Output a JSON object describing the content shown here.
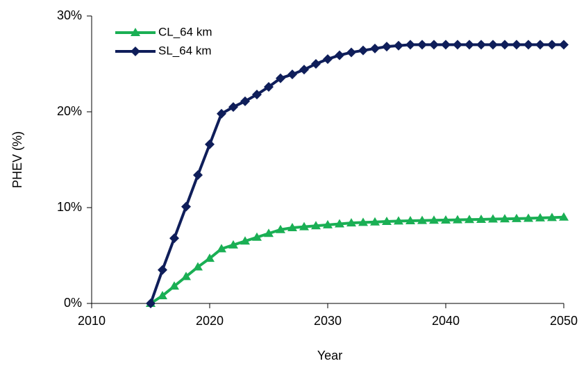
{
  "chart_data": {
    "type": "line",
    "xlabel": "Year",
    "ylabel": "PHEV (%)",
    "x": [
      2015,
      2016,
      2017,
      2018,
      2019,
      2020,
      2021,
      2022,
      2023,
      2024,
      2025,
      2026,
      2027,
      2028,
      2029,
      2030,
      2031,
      2032,
      2033,
      2034,
      2035,
      2036,
      2037,
      2038,
      2039,
      2040,
      2041,
      2042,
      2043,
      2044,
      2045,
      2046,
      2047,
      2048,
      2049,
      2050
    ],
    "series": [
      {
        "name": "CL_64 km",
        "color": "#1aaf54",
        "marker": "triangle",
        "values": [
          0,
          0.8,
          1.8,
          2.8,
          3.8,
          4.7,
          5.7,
          6.1,
          6.5,
          6.9,
          7.3,
          7.7,
          7.9,
          8.0,
          8.1,
          8.2,
          8.3,
          8.4,
          8.45,
          8.5,
          8.55,
          8.6,
          8.62,
          8.65,
          8.68,
          8.7,
          8.72,
          8.75,
          8.77,
          8.8,
          8.82,
          8.85,
          8.88,
          8.92,
          8.96,
          9.0
        ]
      },
      {
        "name": "SL_64 km",
        "color": "#0f1e5a",
        "marker": "diamond",
        "values": [
          0,
          3.5,
          6.8,
          10.1,
          13.4,
          16.6,
          19.8,
          20.5,
          21.1,
          21.8,
          22.6,
          23.5,
          23.9,
          24.4,
          25.0,
          25.5,
          25.9,
          26.2,
          26.4,
          26.6,
          26.8,
          26.9,
          27.0,
          27.0,
          27.0,
          27.0,
          27.0,
          27.0,
          27.0,
          27.0,
          27.0,
          27.0,
          27.0,
          27.0,
          27.0,
          27.0
        ]
      }
    ],
    "xlim": [
      2010,
      2050
    ],
    "xticks": [
      2010,
      2020,
      2030,
      2040,
      2050
    ],
    "ylim": [
      0,
      30
    ],
    "yticks": [
      {
        "value": 0,
        "label": "0%"
      },
      {
        "value": 10,
        "label": "10%"
      },
      {
        "value": 20,
        "label": "20%"
      },
      {
        "value": 30,
        "label": "30%"
      }
    ],
    "grid": false,
    "legend": "upper left"
  }
}
